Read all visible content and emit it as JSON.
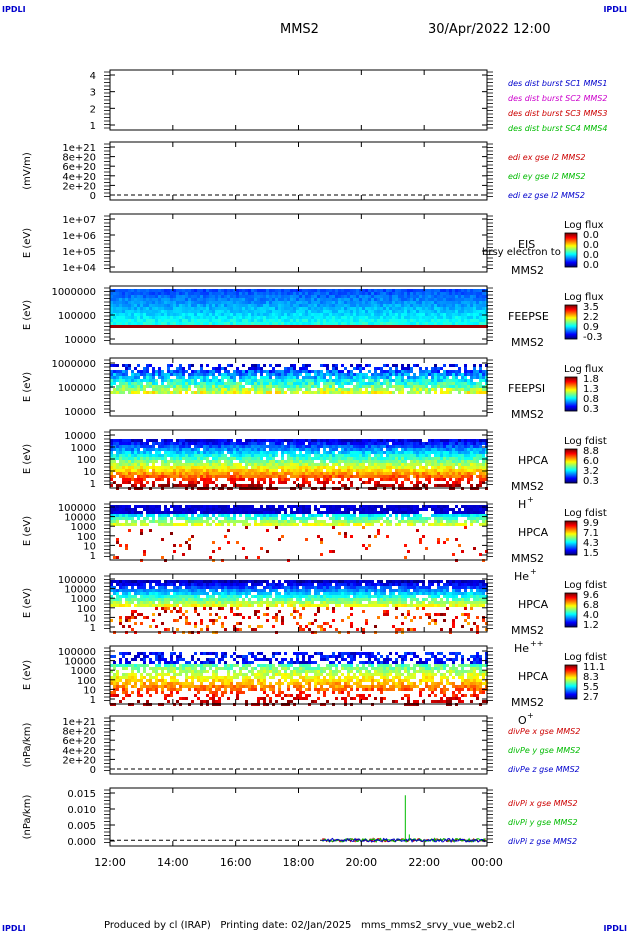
{
  "header": {
    "corner_tl": "IPDLI",
    "corner_tr": "IPDLI",
    "corner_bl": "IPDLI",
    "corner_br": "IPDLI",
    "spacecraft": "MMS2",
    "datetime": "30/Apr/2022 12:00"
  },
  "footer": {
    "produced_by": "Produced by cl (IRAP)",
    "printing_date": "Printing date: 02/Jan/2025",
    "filename": "mms_mms2_srvy_vue_web2.cl"
  },
  "colors": {
    "blue": "#0000cc",
    "magenta": "#cc00cc",
    "red": "#cc0000",
    "green": "#00bb00",
    "black": "#000000"
  },
  "chart_data": [
    {
      "type": "line",
      "ylabel": "",
      "yticks": [
        "4",
        "3",
        "2",
        "1"
      ],
      "ylim": [
        0.6,
        4.4
      ],
      "series": [
        {
          "name": "des dist burst SC1 MMS1",
          "color": "#0000cc",
          "values": []
        },
        {
          "name": "des dist burst SC2 MMS2",
          "color": "#cc00cc",
          "values": []
        },
        {
          "name": "des dist burst SC3 MMS3",
          "color": "#cc0000",
          "values": []
        },
        {
          "name": "des dist burst SC4 MMS4",
          "color": "#00bb00",
          "values": []
        }
      ]
    },
    {
      "type": "line",
      "ylabel": "(mV/m)",
      "yticks": [
        "1e+21",
        "8e+20",
        "6e+20",
        "4e+20",
        "2e+20",
        "0"
      ],
      "ylim": [
        0,
        1e+21
      ],
      "zero_line": true,
      "series": [
        {
          "name": "edi ex gse l2 MMS2",
          "color": "#cc0000",
          "values": []
        },
        {
          "name": "edi ey gse l2 MMS2",
          "color": "#00bb00",
          "values": []
        },
        {
          "name": "edi ez gse l2 MMS2",
          "color": "#0000cc",
          "values": []
        }
      ]
    },
    {
      "type": "heatmap",
      "ylabel": "E (eV)",
      "yticks": [
        "1e+07",
        "1e+06",
        "1e+05",
        "1e+04"
      ],
      "instrument": "EIS",
      "spacecraft": "MMS2",
      "overlay": "brsy electron to",
      "colorbar_title": "Log flux",
      "colorbar_ticks": [
        "0.0",
        "0.0",
        "0.0",
        "0.0"
      ],
      "empty": true
    },
    {
      "type": "heatmap",
      "ylabel": "E (eV)",
      "yticks": [
        "1000000",
        "100000",
        "10000"
      ],
      "instrument": "FEEPSE",
      "spacecraft": "MMS2",
      "colorbar_title": "Log flux",
      "colorbar_ticks": [
        "3.5",
        "2.2",
        "0.9",
        "-0.3"
      ],
      "data_start_hour": 12.0
    },
    {
      "type": "heatmap",
      "ylabel": "E (eV)",
      "yticks": [
        "1000000",
        "100000",
        "10000"
      ],
      "instrument": "FEEPSI",
      "spacecraft": "MMS2",
      "colorbar_title": "Log flux",
      "colorbar_ticks": [
        "1.8",
        "1.3",
        "0.8",
        "0.3"
      ],
      "data_start_hour": 12.0
    },
    {
      "type": "heatmap",
      "ylabel": "E (eV)",
      "yticks": [
        "10000",
        "1000",
        "100",
        "10",
        "1"
      ],
      "instrument": "HPCA",
      "spacecraft": "MMS2",
      "species": "H",
      "species_sup": "+",
      "colorbar_title": "Log fdist",
      "colorbar_ticks": [
        "8.8",
        "6.0",
        "3.2",
        "0.3"
      ],
      "data_start_hour": 12.0
    },
    {
      "type": "heatmap",
      "ylabel": "E (eV)",
      "yticks": [
        "100000",
        "10000",
        "1000",
        "100",
        "10",
        "1"
      ],
      "instrument": "HPCA",
      "spacecraft": "MMS2",
      "species": "He",
      "species_sup": "+",
      "colorbar_title": "Log fdist",
      "colorbar_ticks": [
        "9.9",
        "7.1",
        "4.3",
        "1.5"
      ],
      "data_start_hour": 12.0
    },
    {
      "type": "heatmap",
      "ylabel": "E (eV)",
      "yticks": [
        "100000",
        "10000",
        "1000",
        "100",
        "10",
        "1"
      ],
      "instrument": "HPCA",
      "spacecraft": "MMS2",
      "species": "He",
      "species_sup": "++",
      "colorbar_title": "Log fdist",
      "colorbar_ticks": [
        "9.6",
        "6.8",
        "4.0",
        "1.2"
      ],
      "data_start_hour": 12.0
    },
    {
      "type": "heatmap",
      "ylabel": "E (eV)",
      "yticks": [
        "100000",
        "10000",
        "1000",
        "100",
        "10",
        "1"
      ],
      "instrument": "HPCA",
      "spacecraft": "MMS2",
      "species": "O",
      "species_sup": "+",
      "colorbar_title": "Log fdist",
      "colorbar_ticks": [
        "11.1",
        "8.3",
        "5.5",
        "2.7"
      ],
      "data_start_hour": 12.0
    },
    {
      "type": "line",
      "ylabel": "(nPa/km)",
      "yticks": [
        "1e+21",
        "8e+20",
        "6e+20",
        "4e+20",
        "2e+20",
        "0"
      ],
      "ylim": [
        0,
        1e+21
      ],
      "zero_line": true,
      "series": [
        {
          "name": "divPe x gse MMS2",
          "color": "#cc0000",
          "values": []
        },
        {
          "name": "divPe y gse MMS2",
          "color": "#00bb00",
          "values": []
        },
        {
          "name": "divPe z gse MMS2",
          "color": "#0000cc",
          "values": []
        }
      ]
    },
    {
      "type": "line",
      "ylabel": "(nPa/km)",
      "yticks": [
        "0.015",
        "0.010",
        "0.005",
        "0.000"
      ],
      "ylim": [
        -0.002,
        0.018
      ],
      "zero_line": true,
      "data_start_hour": 18.75,
      "spike_hour": 21.4,
      "spike_value": 0.0155,
      "series": [
        {
          "name": "divPi x gse MMS2",
          "color": "#cc0000",
          "values": []
        },
        {
          "name": "divPi y gse MMS2",
          "color": "#00bb00",
          "values": []
        },
        {
          "name": "divPi z gse MMS2",
          "color": "#0000cc",
          "values": []
        }
      ]
    }
  ],
  "xaxis": {
    "ticks": [
      "12:00",
      "14:00",
      "16:00",
      "18:00",
      "20:00",
      "22:00",
      "00:00"
    ],
    "range_hours": [
      12,
      24
    ]
  }
}
